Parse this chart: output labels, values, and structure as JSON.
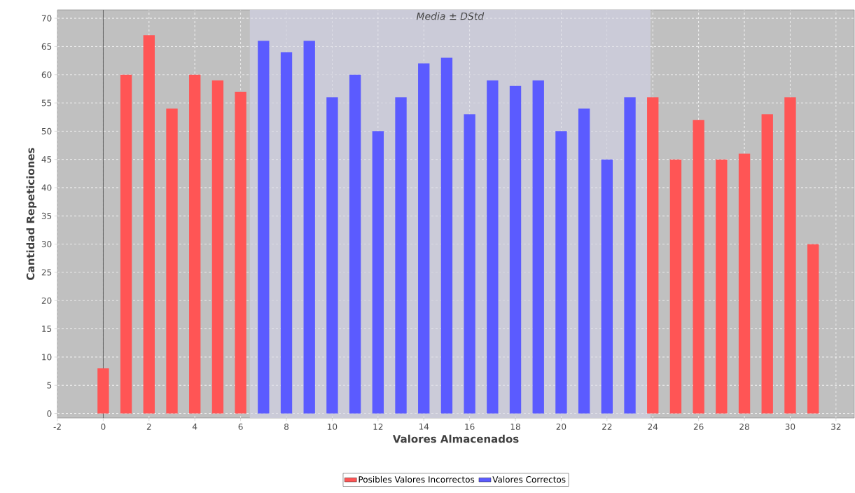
{
  "chart_data": {
    "type": "bar",
    "xlabel": "Valores Almacenados",
    "ylabel": "Cantidad Repeticiones",
    "x": [
      0,
      1,
      2,
      3,
      4,
      5,
      6,
      7,
      8,
      9,
      10,
      11,
      12,
      13,
      14,
      15,
      16,
      17,
      18,
      19,
      20,
      21,
      22,
      23,
      24,
      25,
      26,
      27,
      28,
      29,
      30,
      31
    ],
    "series": [
      {
        "name": "Posibles Valores Incorrectos",
        "color": "#ff5555",
        "values": [
          8,
          60,
          67,
          54,
          60,
          59,
          57,
          null,
          null,
          null,
          null,
          null,
          null,
          null,
          null,
          null,
          null,
          null,
          null,
          null,
          null,
          null,
          null,
          null,
          56,
          45,
          52,
          45,
          46,
          53,
          56,
          30
        ]
      },
      {
        "name": "Valores Correctos",
        "color": "#5b5bff",
        "values": [
          null,
          null,
          null,
          null,
          null,
          null,
          null,
          66,
          64,
          66,
          56,
          60,
          50,
          56,
          62,
          63,
          53,
          59,
          58,
          59,
          50,
          54,
          45,
          56,
          null,
          null,
          null,
          null,
          null,
          null,
          null,
          null
        ]
      }
    ],
    "xlim": [
      -2,
      32.8
    ],
    "ylim": [
      -0.8,
      71.5
    ],
    "xticks": [
      -2,
      0,
      2,
      4,
      6,
      8,
      10,
      12,
      14,
      16,
      18,
      20,
      22,
      24,
      26,
      28,
      30,
      32
    ],
    "yticks": [
      0,
      5,
      10,
      15,
      20,
      25,
      30,
      35,
      40,
      45,
      50,
      55,
      60,
      65,
      70
    ],
    "grid": true,
    "legend": "bottom",
    "bands": [
      {
        "axis": "x",
        "from": 6.4,
        "to": 23.9,
        "label": "Media ± DStd",
        "color": "#cbcbd8"
      }
    ],
    "ref_lines": [
      {
        "axis": "x",
        "value": 0,
        "color": "#555555"
      }
    ]
  }
}
